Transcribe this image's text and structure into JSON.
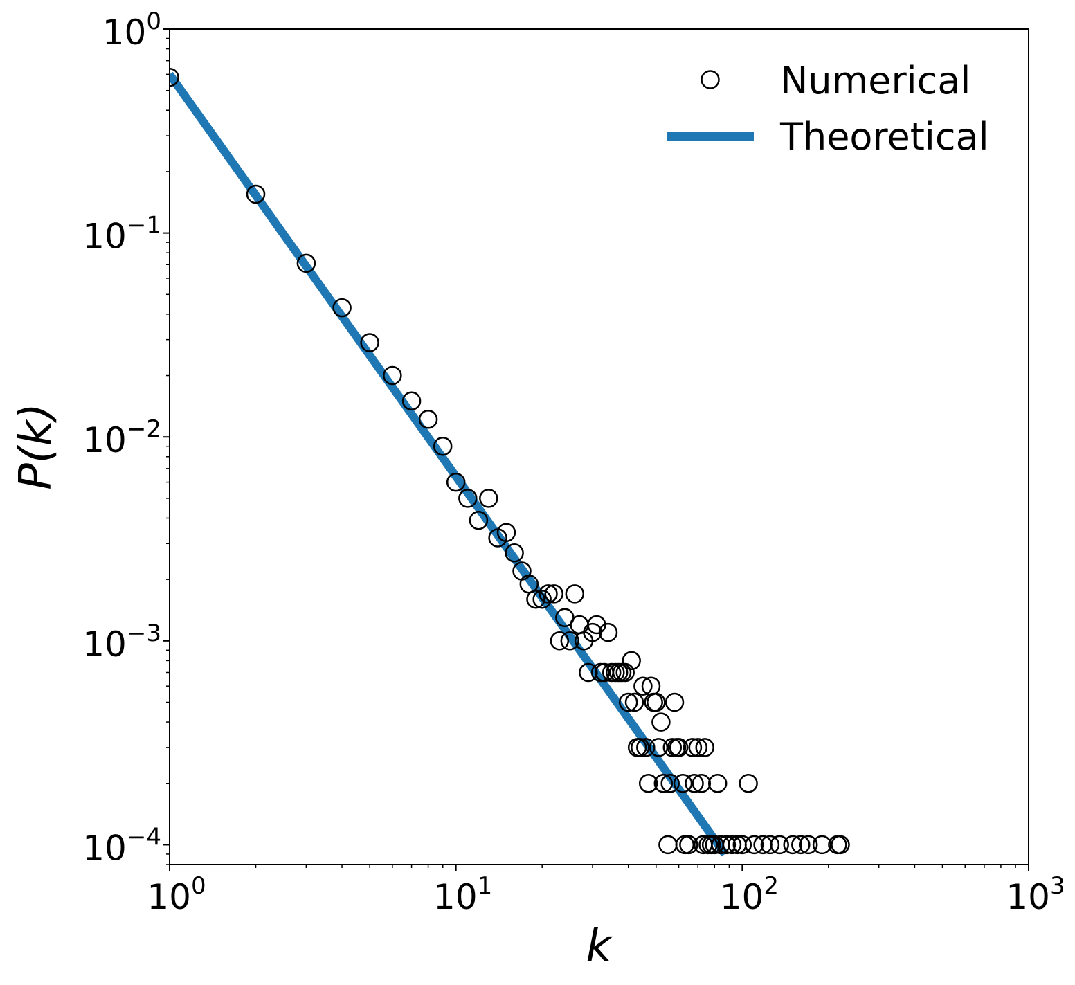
{
  "chart_data": {
    "type": "scatter",
    "title": "",
    "xlabel": "k",
    "ylabel": "P(k)",
    "xscale": "log",
    "yscale": "log",
    "xlim": [
      1,
      1000
    ],
    "ylim": [
      8e-05,
      1
    ],
    "grid": false,
    "legend_position": "top-right",
    "x_ticks": [
      {
        "base": "10",
        "exp": "0"
      },
      {
        "base": "10",
        "exp": "1"
      },
      {
        "base": "10",
        "exp": "2"
      },
      {
        "base": "10",
        "exp": "3"
      }
    ],
    "y_ticks": [
      {
        "base": "10",
        "exp": "0"
      },
      {
        "base": "10",
        "exp": "−1"
      },
      {
        "base": "10",
        "exp": "−2"
      },
      {
        "base": "10",
        "exp": "−3"
      },
      {
        "base": "10",
        "exp": "−4"
      }
    ],
    "series": [
      {
        "name": "Numerical",
        "kind": "scatter",
        "marker": "open-circle",
        "color": "#000000",
        "points": [
          [
            1,
            0.58
          ],
          [
            2,
            0.155
          ],
          [
            3,
            0.071
          ],
          [
            4,
            0.043
          ],
          [
            5,
            0.029
          ],
          [
            6,
            0.02
          ],
          [
            7,
            0.015
          ],
          [
            8,
            0.0122
          ],
          [
            9,
            0.009
          ],
          [
            10,
            0.006
          ],
          [
            11,
            0.005
          ],
          [
            12,
            0.0039
          ],
          [
            13,
            0.005
          ],
          [
            14,
            0.0032
          ],
          [
            15,
            0.0034
          ],
          [
            16,
            0.0027
          ],
          [
            17,
            0.0022
          ],
          [
            18,
            0.0019
          ],
          [
            19,
            0.0016
          ],
          [
            20,
            0.0016
          ],
          [
            21,
            0.0017
          ],
          [
            22,
            0.0017
          ],
          [
            23,
            0.001
          ],
          [
            24,
            0.0013
          ],
          [
            25,
            0.001
          ],
          [
            26,
            0.0017
          ],
          [
            27,
            0.0012
          ],
          [
            28,
            0.001
          ],
          [
            29,
            0.0007
          ],
          [
            30,
            0.0011
          ],
          [
            31,
            0.0012
          ],
          [
            32,
            0.0007
          ],
          [
            33,
            0.0007
          ],
          [
            34,
            0.0011
          ],
          [
            35,
            0.0007
          ],
          [
            36,
            0.0007
          ],
          [
            37,
            0.0007
          ],
          [
            38,
            0.0007
          ],
          [
            39,
            0.0007
          ],
          [
            40,
            0.0005
          ],
          [
            41,
            0.0008
          ],
          [
            42,
            0.0005
          ],
          [
            43,
            0.0003
          ],
          [
            44,
            0.0003
          ],
          [
            45,
            0.0006
          ],
          [
            46,
            0.0003
          ],
          [
            47,
            0.0002
          ],
          [
            48,
            0.0006
          ],
          [
            49,
            0.0005
          ],
          [
            50,
            0.0005
          ],
          [
            51,
            0.0003
          ],
          [
            52,
            0.0004
          ],
          [
            53,
            0.0002
          ],
          [
            55,
            0.0001
          ],
          [
            56,
            0.0002
          ],
          [
            57,
            0.0003
          ],
          [
            58,
            0.0005
          ],
          [
            59,
            0.0003
          ],
          [
            60,
            0.0003
          ],
          [
            62,
            0.0002
          ],
          [
            63,
            0.0001
          ],
          [
            65,
            0.0001
          ],
          [
            67,
            0.0003
          ],
          [
            68,
            0.0002
          ],
          [
            70,
            0.0003
          ],
          [
            72,
            0.0002
          ],
          [
            73,
            0.0001
          ],
          [
            74,
            0.0003
          ],
          [
            76,
            0.0001
          ],
          [
            78,
            0.0001
          ],
          [
            80,
            0.0001
          ],
          [
            82,
            0.0002
          ],
          [
            84,
            0.0001
          ],
          [
            88,
            0.0001
          ],
          [
            92,
            0.0001
          ],
          [
            96,
            0.0001
          ],
          [
            100,
            0.0001
          ],
          [
            105,
            0.0002
          ],
          [
            110,
            0.0001
          ],
          [
            118,
            0.0001
          ],
          [
            125,
            0.0001
          ],
          [
            135,
            0.0001
          ],
          [
            150,
            0.0001
          ],
          [
            160,
            0.0001
          ],
          [
            170,
            0.0001
          ],
          [
            190,
            0.0001
          ],
          [
            215,
            0.0001
          ],
          [
            220,
            0.0001
          ]
        ]
      },
      {
        "name": "Theoretical",
        "kind": "line",
        "color": "#1f77b4",
        "points": [
          [
            1,
            0.6
          ],
          [
            87,
            9e-05
          ]
        ]
      }
    ]
  }
}
